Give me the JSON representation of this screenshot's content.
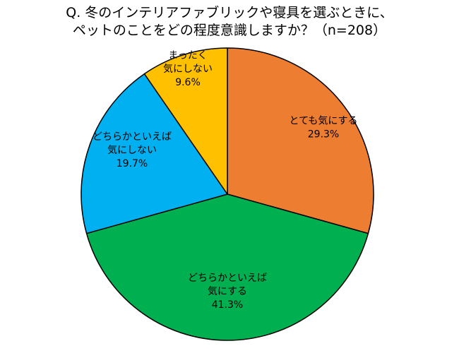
{
  "title_lines": [
    "Q. 冬のインテリアファブリックや寝具を選ぶときに、",
    "ペットのことをどの程度意識しますか？（n=208）"
  ],
  "chart_data": {
    "type": "pie",
    "title": "Q. 冬のインテリアファブリックや寝具を選ぶときに、ペットのことをどの程度意識しますか？（n=208）",
    "start": "12 o'clock",
    "direction": "clockwise",
    "slices": [
      {
        "label": "とても気にする",
        "label_lines": [
          "とても気にする"
        ],
        "value": 29.3,
        "value_text": "29.3%",
        "color": "#ED7D31"
      },
      {
        "label": "どちらかといえば気にする",
        "label_lines": [
          "どちらかといえば",
          "気にする"
        ],
        "value": 41.3,
        "value_text": "41.3%",
        "color": "#00B050"
      },
      {
        "label": "どちらかといえば気にしない",
        "label_lines": [
          "どちらかといえば",
          "気にしない"
        ],
        "value": 19.7,
        "value_text": "19.7%",
        "color": "#00B0F0"
      },
      {
        "label": "まったく気にしない",
        "label_lines": [
          "まったく",
          "気にしない"
        ],
        "value": 9.6,
        "value_text": "9.6%",
        "color": "#FFC000"
      }
    ]
  }
}
